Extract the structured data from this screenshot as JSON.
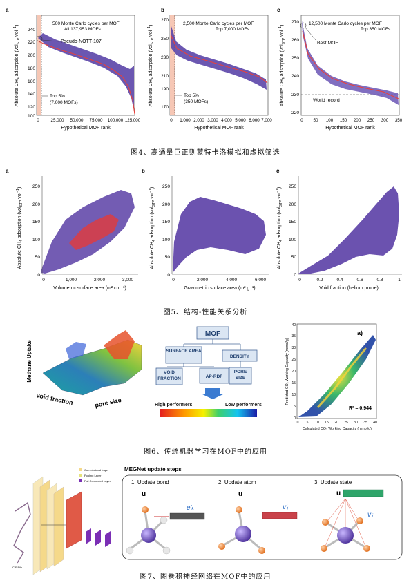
{
  "figure4": {
    "caption": "图4、高通量巨正则蒙特卡洛模拟和虚拟筛选",
    "panels": [
      {
        "letter": "a",
        "title_line1": "500 Monte Carlo cycles per MOF",
        "title_line2": "All 137,953 MOFs",
        "ylabel_main": "Absolute CH",
        "ylabel_sub": "4",
        "ylabel_rest": " adsorption (vol",
        "ylabel_stp": "STP",
        "ylabel_end": " vol",
        "ylabel_sup": "−1",
        ")": ")",
        "xlabel": "Hypothetical MOF rank",
        "yticks": [
          "240",
          "220",
          "200",
          "180",
          "160",
          "140",
          "120",
          "100"
        ],
        "xticks": [
          "0",
          "25,000",
          "50,000",
          "75,000",
          "100,000",
          "125,000"
        ],
        "annotation": "Pseudo-NOTT-107",
        "top_line1": "Top 5%",
        "top_line2": "(7,000 MOFs)"
      },
      {
        "letter": "b",
        "title_line1": "2,500 Monte Carlo cycles per MOF",
        "title_line2": "Top 7,000 MOFs",
        "xlabel": "Hypothetical MOF rank",
        "yticks": [
          "270",
          "250",
          "230",
          "210",
          "190",
          "170"
        ],
        "xticks": [
          "0",
          "1,000",
          "2,000",
          "3,000",
          "4,000",
          "5,000",
          "6,000",
          "7,000"
        ],
        "top_line1": "Top 5%",
        "top_line2": "(350 MOFs)"
      },
      {
        "letter": "c",
        "title_line1": "12,500 Monte Carlo cycles per MOF",
        "title_line2": "Top 350 MOFs",
        "xlabel": "Hypothetical MOF rank",
        "yticks": [
          "270",
          "260",
          "250",
          "240",
          "230",
          "220"
        ],
        "xticks": [
          "0",
          "50",
          "100",
          "150",
          "200",
          "250",
          "300",
          "350"
        ],
        "annotation": "Best MOF",
        "record": "World record"
      }
    ]
  },
  "figure5": {
    "caption": "图5、结构-性能关系分析",
    "panels": [
      {
        "letter": "a",
        "xlabel": "Volumetric surface area (m² cm⁻³)",
        "yticks": [
          "250",
          "200",
          "150",
          "100",
          "50",
          "0"
        ],
        "xticks": [
          "0",
          "1,000",
          "2,000",
          "3,000"
        ]
      },
      {
        "letter": "b",
        "xlabel": "Gravimetric surface area (m² g⁻¹)",
        "yticks": [
          "250",
          "200",
          "150",
          "100",
          "50",
          "0"
        ],
        "xticks": [
          "0",
          "2,000",
          "4,000",
          "6,000"
        ]
      },
      {
        "letter": "c",
        "xlabel": "Void fraction (helium probe)",
        "yticks": [
          "250",
          "200",
          "150",
          "100",
          "50",
          "0"
        ],
        "xticks": [
          "0",
          "0.2",
          "0.4",
          "0.6",
          "0.8",
          "1"
        ]
      }
    ]
  },
  "figure6": {
    "caption": "图6、传统机器学习在MOF中的应用",
    "surface": {
      "zlabel": "Methane Uptake",
      "xlabel": "void fraction",
      "ylabel": "pore size"
    },
    "tree": {
      "root": "MOF",
      "surface_area": "SURFACE AREA",
      "density": "DENSITY",
      "void_fraction": "VOID FRACTION",
      "aprdf": "AP-RDF",
      "pore_size": "PORE SIZE",
      "high": "High performers",
      "low": "Low performers"
    },
    "parity": {
      "panel": "a)",
      "r2": "R² = 0.944",
      "ylabel": "Predicted CO₂ Working Capacity (mmol/g)",
      "xlabel": "Calculated CO₂ Working Capacity (mmol/g)",
      "ticks": [
        "0",
        "5",
        "10",
        "15",
        "20",
        "25",
        "30",
        "35",
        "40"
      ]
    }
  },
  "figure7": {
    "caption": "图7、图卷积神经网络在MOF中的应用",
    "legend": [
      "Convolutional Layer",
      "Pooling Layer",
      "Full Connected Layer"
    ],
    "cif": "CIF File",
    "megnet_title": "MEGNet update steps",
    "steps": [
      "1. Update bond",
      "2. Update atom",
      "3. Update state"
    ]
  }
}
